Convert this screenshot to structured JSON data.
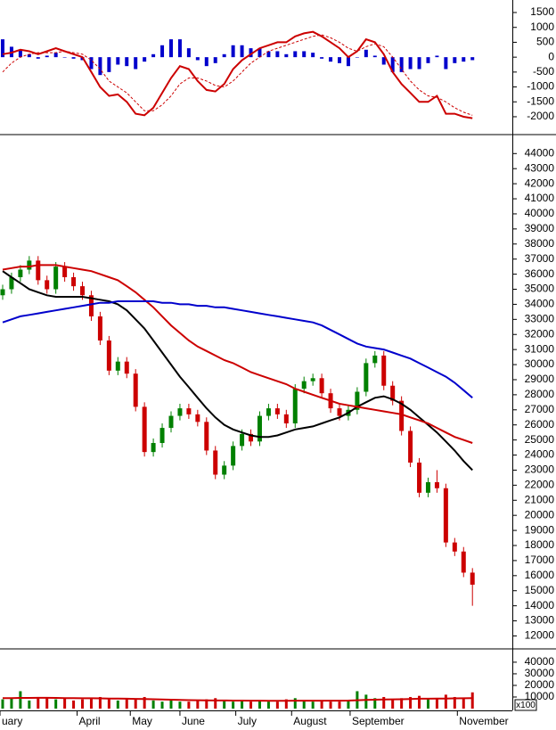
{
  "chart_data": [
    {
      "type": "combo",
      "xlim": [
        -0.3,
        57.2
      ],
      "ylim": [
        -2570,
        1920
      ],
      "yticks": [
        1500,
        1000,
        500,
        0,
        -500,
        -1000,
        -1500,
        -2000
      ],
      "series": [
        {
          "type": "bar",
          "color": "#0000cc",
          "values": [
            600,
            350,
            250,
            100,
            -50,
            50,
            150,
            0,
            -50,
            -100,
            -400,
            -600,
            -500,
            -250,
            -300,
            -400,
            -150,
            100,
            400,
            600,
            600,
            300,
            -100,
            -300,
            -200,
            100,
            400,
            400,
            300,
            300,
            200,
            200,
            100,
            200,
            200,
            150,
            -50,
            -150,
            -200,
            -300,
            0,
            250,
            50,
            -250,
            -500,
            -500,
            -400,
            -400,
            -200,
            50,
            -400,
            -200,
            -150,
            -100
          ]
        },
        {
          "type": "line",
          "color": "#cc0000",
          "values": [
            100,
            150,
            250,
            200,
            100,
            200,
            300,
            200,
            100,
            0,
            -500,
            -1000,
            -1300,
            -1250,
            -1500,
            -1900,
            -1950,
            -1700,
            -1200,
            -700,
            -300,
            -400,
            -800,
            -1100,
            -1150,
            -900,
            -400,
            -100,
            100,
            300,
            400,
            500,
            500,
            700,
            800,
            850,
            700,
            500,
            300,
            0,
            200,
            600,
            500,
            100,
            -500,
            -900,
            -1200,
            -1500,
            -1500,
            -1300,
            -1900,
            -1900,
            -2000,
            -2050
          ]
        },
        {
          "type": "line",
          "color": "#cc0000",
          "dashed": true,
          "values": [
            -500,
            -200,
            0,
            100,
            150,
            150,
            150,
            200,
            150,
            100,
            -100,
            -400,
            -800,
            -1000,
            -1200,
            -1500,
            -1800,
            -1800,
            -1600,
            -1300,
            -900,
            -700,
            -700,
            -800,
            -950,
            -1000,
            -800,
            -500,
            -200,
            0,
            200,
            300,
            400,
            500,
            600,
            700,
            750,
            650,
            500,
            300,
            200,
            350,
            450,
            350,
            0,
            -400,
            -800,
            -1100,
            -1300,
            -1350,
            -1500,
            -1700,
            -1850,
            -1950
          ]
        }
      ]
    },
    {
      "type": "candlestick",
      "xlim": [
        -0.3,
        57.2
      ],
      "ylim": [
        11200,
        45200
      ],
      "yticks": [
        44000,
        43000,
        42000,
        41000,
        40000,
        39000,
        38000,
        37000,
        36000,
        35000,
        34000,
        33000,
        32000,
        31000,
        30000,
        29000,
        28000,
        27000,
        26000,
        25000,
        24000,
        23000,
        22000,
        21000,
        20000,
        19000,
        18000,
        17000,
        16000,
        15000,
        14000,
        13000,
        12000
      ],
      "up_color": "#008000",
      "down_color": "#cc0000",
      "open": [
        34600,
        35000,
        35800,
        36300,
        36900,
        35600,
        35000,
        36500,
        35800,
        35200,
        34600,
        33200,
        31600,
        29600,
        30200,
        29400,
        27200,
        24200,
        24800,
        25800,
        26600,
        27100,
        26700,
        26200,
        24300,
        22700,
        23300,
        24600,
        25400,
        24900,
        26600,
        27100,
        26700,
        26100,
        28400,
        28900,
        29100,
        28100,
        27100,
        26600,
        27000,
        28200,
        30100,
        30600,
        28600,
        27600,
        25600,
        23500,
        21500,
        22200,
        21800,
        18200,
        17600,
        16200
      ],
      "high": [
        35300,
        36100,
        36600,
        37200,
        37200,
        35900,
        36800,
        36800,
        36100,
        35500,
        34900,
        33500,
        31900,
        30500,
        30500,
        29700,
        27500,
        25100,
        26100,
        26900,
        27400,
        27400,
        27000,
        26500,
        24600,
        23600,
        24900,
        25700,
        25700,
        26900,
        27400,
        27400,
        27000,
        28700,
        29200,
        29400,
        29400,
        28400,
        27400,
        27300,
        28500,
        30400,
        30900,
        30900,
        28900,
        27900,
        25900,
        23800,
        22500,
        23000,
        22100,
        18500,
        17900,
        16500
      ],
      "low": [
        34300,
        34700,
        35500,
        36000,
        35300,
        34700,
        34700,
        35500,
        34900,
        34300,
        32900,
        31300,
        29300,
        29300,
        29100,
        26900,
        23900,
        23900,
        24500,
        25500,
        26300,
        26400,
        25900,
        24000,
        22400,
        22400,
        23000,
        24300,
        24600,
        24600,
        26300,
        26400,
        25800,
        25800,
        28100,
        28600,
        27800,
        26800,
        26300,
        26300,
        26700,
        27900,
        29800,
        28300,
        27300,
        25300,
        23200,
        21200,
        21200,
        21500,
        17900,
        17300,
        15900,
        14000
      ],
      "close": [
        35000,
        35800,
        36300,
        36900,
        35600,
        35000,
        36500,
        35800,
        35200,
        34600,
        33200,
        31600,
        29600,
        30200,
        29400,
        27200,
        24200,
        24800,
        25800,
        26600,
        27100,
        26700,
        26200,
        24300,
        22700,
        23300,
        24600,
        25400,
        24900,
        26600,
        27100,
        26700,
        26100,
        28400,
        28900,
        29100,
        28100,
        27100,
        26600,
        27000,
        28200,
        30100,
        30600,
        28600,
        27600,
        25600,
        23500,
        21500,
        22200,
        21800,
        18200,
        17600,
        16200,
        15400
      ],
      "series": [
        {
          "type": "line",
          "color": "#000000",
          "values": [
            36200,
            35800,
            35400,
            35000,
            34800,
            34600,
            34500,
            34500,
            34500,
            34500,
            34400,
            34300,
            34200,
            34000,
            33600,
            33000,
            32400,
            31600,
            30800,
            30000,
            29200,
            28500,
            27800,
            27100,
            26500,
            26000,
            25700,
            25500,
            25300,
            25200,
            25200,
            25300,
            25500,
            25700,
            25800,
            25900,
            26100,
            26300,
            26500,
            26800,
            27200,
            27500,
            27800,
            27900,
            27700,
            27400,
            27000,
            26500,
            26000,
            25500,
            24900,
            24300,
            23600,
            23000
          ]
        },
        {
          "type": "line",
          "color": "#cc0000",
          "values": [
            36300,
            36400,
            36500,
            36500,
            36600,
            36600,
            36600,
            36500,
            36400,
            36300,
            36200,
            36000,
            35800,
            35600,
            35200,
            34800,
            34300,
            33800,
            33200,
            32600,
            32100,
            31600,
            31200,
            30900,
            30600,
            30300,
            30100,
            29800,
            29500,
            29300,
            29100,
            28900,
            28700,
            28400,
            28200,
            28000,
            27800,
            27600,
            27400,
            27300,
            27200,
            27100,
            27000,
            26900,
            26800,
            26700,
            26500,
            26300,
            26100,
            25800,
            25500,
            25200,
            25000,
            24800
          ]
        },
        {
          "type": "line",
          "color": "#0000cc",
          "values": [
            32800,
            33000,
            33200,
            33300,
            33400,
            33500,
            33600,
            33700,
            33800,
            33900,
            34000,
            34100,
            34100,
            34200,
            34200,
            34200,
            34200,
            34200,
            34100,
            34100,
            34000,
            34000,
            33900,
            33900,
            33800,
            33800,
            33700,
            33600,
            33500,
            33400,
            33300,
            33200,
            33100,
            33000,
            32900,
            32800,
            32600,
            32300,
            32000,
            31700,
            31400,
            31200,
            31100,
            31000,
            30800,
            30600,
            30400,
            30100,
            29800,
            29500,
            29200,
            28800,
            28300,
            27800
          ]
        }
      ]
    },
    {
      "type": "combo",
      "xlim": [
        -0.3,
        57.2
      ],
      "ylim": [
        0,
        50700
      ],
      "yticks": [
        40000,
        30000,
        20000,
        10000
      ],
      "annotation": "x100",
      "xticks": [
        {
          "value": -0.3,
          "label": "uary"
        },
        {
          "value": 8.4,
          "label": "April"
        },
        {
          "value": 14.4,
          "label": "May"
        },
        {
          "value": 20,
          "label": "June"
        },
        {
          "value": 26.3,
          "label": "July"
        },
        {
          "value": 32.6,
          "label": "August"
        },
        {
          "value": 39.2,
          "label": "September"
        },
        {
          "value": 51.3,
          "label": "November"
        }
      ],
      "series": [
        {
          "type": "bar",
          "color": "#008000",
          "values": [
            8000,
            9000,
            15000,
            7000,
            10000,
            9000,
            8000,
            9000,
            7000,
            8000,
            9000,
            10000,
            8000,
            7000,
            9000,
            8000,
            10000,
            7000,
            6000,
            7000,
            6000,
            6000,
            7000,
            8000,
            9000,
            7000,
            6000,
            7000,
            6000,
            7000,
            6000,
            6000,
            8000,
            9000,
            7000,
            6000,
            7000,
            6000,
            6000,
            7000,
            15000,
            12000,
            9000,
            10000,
            8000,
            9000,
            10000,
            11000,
            8000,
            9000,
            12000,
            10000,
            9000,
            14000
          ]
        },
        {
          "type": "line",
          "color": "#cc0000",
          "values": [
            9000,
            9000,
            9200,
            9200,
            9300,
            9300,
            9200,
            9100,
            9000,
            8900,
            8900,
            8800,
            8700,
            8600,
            8500,
            8400,
            8300,
            8100,
            7900,
            7700,
            7500,
            7300,
            7200,
            7100,
            7000,
            7000,
            6900,
            6900,
            6800,
            6800,
            6700,
            6700,
            6700,
            6800,
            6800,
            6800,
            6800,
            6800,
            6800,
            6900,
            7200,
            7500,
            7700,
            7900,
            8000,
            8100,
            8300,
            8500,
            8500,
            8600,
            8700,
            8800,
            8900,
            9000
          ]
        }
      ]
    }
  ]
}
